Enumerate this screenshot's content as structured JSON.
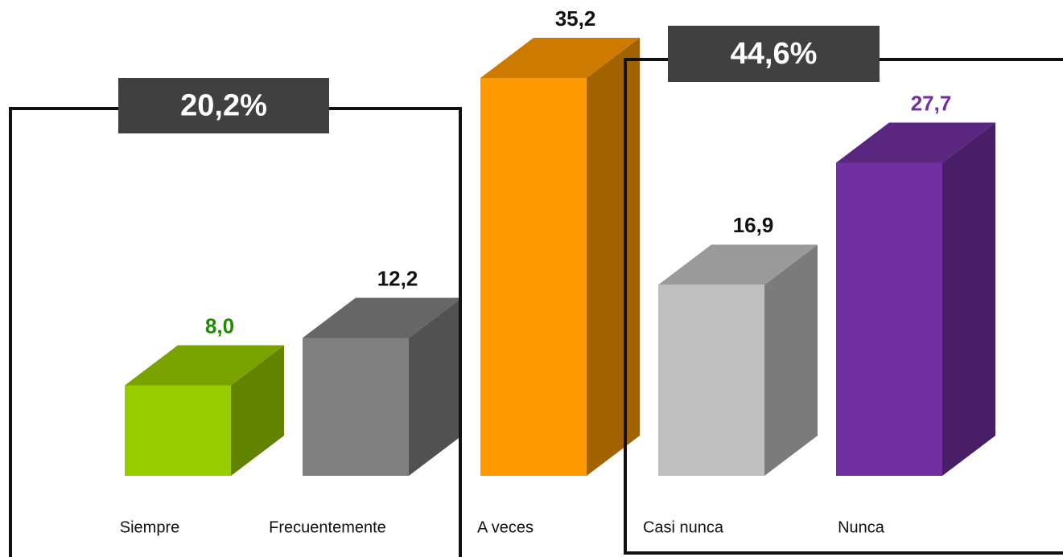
{
  "chart_data": {
    "type": "bar3d",
    "categories": [
      "Siempre",
      "Frecuentemente",
      "A veces",
      "Casi nunca",
      "Nunca"
    ],
    "values": [
      8.0,
      12.2,
      35.2,
      16.9,
      27.7
    ],
    "value_labels": [
      "8,0",
      "12,2",
      "35,2",
      "16,9",
      "27,7"
    ],
    "colors": [
      "#99cc00",
      "#808080",
      "#ff9900",
      "#c0c0c0",
      "#7030a0"
    ],
    "label_colors": [
      "#1e8c00",
      "#111111",
      "#111111",
      "#111111",
      "#7030a0"
    ],
    "annotations": [
      {
        "text": "20,2%"
      },
      {
        "text": "44,6%"
      }
    ]
  }
}
